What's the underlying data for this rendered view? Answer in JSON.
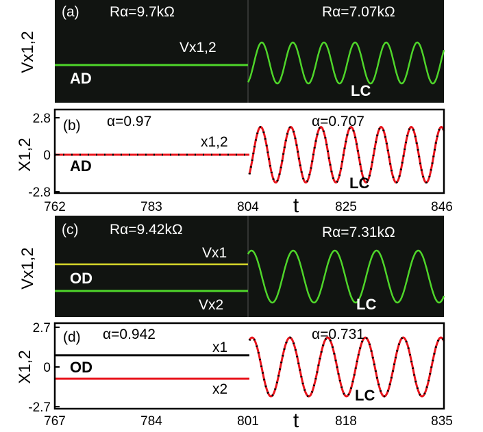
{
  "colors": {
    "scope_bg": "#111411",
    "scope_trace_green": "#4fd62a",
    "scope_trace_yellow": "#d6d62a",
    "sim_red": "#e8141c",
    "sim_black": "#000000"
  },
  "panels": {
    "a": {
      "tag": "(a)",
      "left_param": "Rα=9.7kΩ",
      "right_param": "Rα=7.07kΩ",
      "ylabel": "Vx1,2",
      "trace_label": "Vx1,2",
      "left_state": "AD",
      "right_state": "LC"
    },
    "b": {
      "tag": "(b)",
      "left_param": "α=0.97",
      "right_param": "α=0.707",
      "ylabel": "X1,2",
      "trace_label": "x1,2",
      "left_state": "AD",
      "right_state": "LC",
      "yticks": [
        "2.8",
        "0",
        "-2.8"
      ],
      "xticks": [
        "762",
        "783",
        "804",
        "825",
        "846"
      ],
      "xlabel": "t"
    },
    "c": {
      "tag": "(c)",
      "left_param": "Rα=9.42kΩ",
      "right_param": "Rα=7.31kΩ",
      "ylabel": "Vx1,2",
      "trace1_label": "Vx1",
      "trace2_label": "Vx2",
      "left_state": "OD",
      "right_state": "LC"
    },
    "d": {
      "tag": "(d)",
      "left_param": "α=0.942",
      "right_param": "α=0.731",
      "ylabel": "X1,2",
      "trace1_label": "x1",
      "trace2_label": "x2",
      "left_state": "OD",
      "right_state": "LC",
      "yticks": [
        "2.7",
        "0",
        "-2.7"
      ],
      "xticks": [
        "767",
        "784",
        "801",
        "818",
        "835"
      ],
      "xlabel": "t"
    }
  },
  "chart_data": [
    {
      "type": "line",
      "panel": "a",
      "kind": "oscilloscope",
      "series": [
        {
          "name": "Vx1,2",
          "segment": "AD",
          "level": 0.0
        },
        {
          "name": "Vx1,2",
          "segment": "LC",
          "cycles": 6.3
        }
      ]
    },
    {
      "type": "line",
      "panel": "b",
      "xlim": [
        762,
        846
      ],
      "ylim": [
        -2.8,
        2.8
      ],
      "series": [
        {
          "name": "x1,2",
          "segment": "AD",
          "x_range": [
            762,
            804
          ],
          "value": 0.0
        },
        {
          "name": "x1,2",
          "segment": "LC",
          "x_range": [
            804,
            846
          ],
          "amplitude": 2.1,
          "period": 6.5
        }
      ]
    },
    {
      "type": "line",
      "panel": "c",
      "kind": "oscilloscope",
      "series": [
        {
          "name": "Vx1",
          "segment": "OD",
          "level": 1.0
        },
        {
          "name": "Vx2",
          "segment": "OD",
          "level": -1.0
        },
        {
          "name": "Vx1,2",
          "segment": "LC",
          "cycles": 4.7
        }
      ]
    },
    {
      "type": "line",
      "panel": "d",
      "xlim": [
        767,
        835
      ],
      "ylim": [
        -2.7,
        2.7
      ],
      "series": [
        {
          "name": "x1",
          "segment": "OD",
          "x_range": [
            767,
            801
          ],
          "value": 0.8
        },
        {
          "name": "x2",
          "segment": "OD",
          "x_range": [
            767,
            801
          ],
          "value": -0.8
        },
        {
          "name": "x1,2",
          "segment": "LC",
          "x_range": [
            801,
            835
          ],
          "amplitude": 2.0,
          "period": 6.6
        }
      ]
    }
  ]
}
